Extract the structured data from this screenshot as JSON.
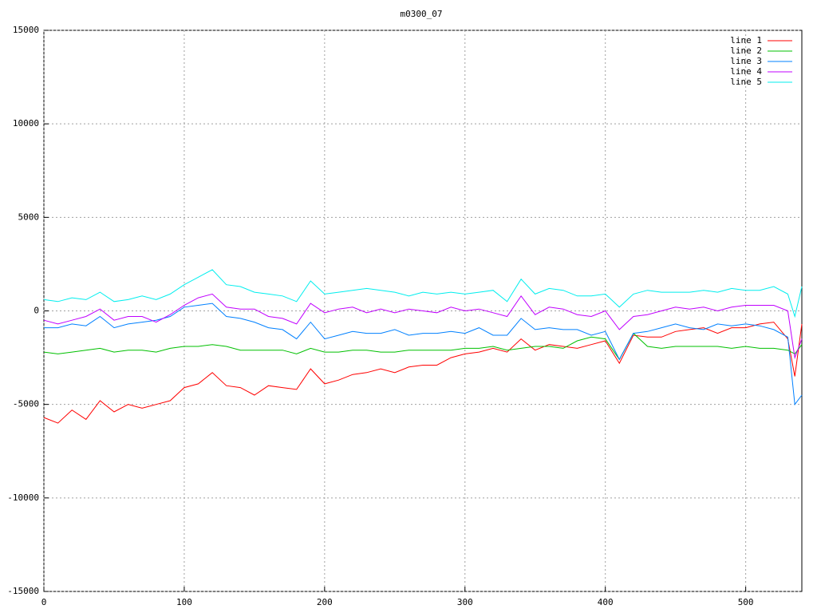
{
  "chart_data": {
    "type": "line",
    "title": "m0300_07",
    "x": [
      0,
      10,
      20,
      30,
      40,
      50,
      60,
      70,
      80,
      90,
      100,
      110,
      120,
      130,
      140,
      150,
      160,
      170,
      180,
      190,
      200,
      210,
      220,
      230,
      240,
      250,
      260,
      270,
      280,
      290,
      300,
      310,
      320,
      330,
      340,
      350,
      360,
      370,
      380,
      390,
      400,
      410,
      420,
      430,
      440,
      450,
      460,
      470,
      480,
      490,
      500,
      510,
      520,
      530,
      535,
      540
    ],
    "series": [
      {
        "name": "line 1",
        "color": "#ff0000",
        "values": [
          -5700,
          -6000,
          -5300,
          -5800,
          -4800,
          -5400,
          -5000,
          -5200,
          -5000,
          -4800,
          -4100,
          -3900,
          -3300,
          -4000,
          -4100,
          -4500,
          -4000,
          -4100,
          -4200,
          -3100,
          -3900,
          -3700,
          -3400,
          -3300,
          -3100,
          -3300,
          -3000,
          -2900,
          -2900,
          -2500,
          -2300,
          -2200,
          -2000,
          -2200,
          -1500,
          -2100,
          -1800,
          -1900,
          -2000,
          -1800,
          -1600,
          -2800,
          -1300,
          -1400,
          -1400,
          -1100,
          -1000,
          -900,
          -1200,
          -900,
          -900,
          -700,
          -600,
          -1500,
          -3500,
          -700
        ]
      },
      {
        "name": "line 2",
        "color": "#00c000",
        "values": [
          -2200,
          -2300,
          -2200,
          -2100,
          -2000,
          -2200,
          -2100,
          -2100,
          -2200,
          -2000,
          -1900,
          -1900,
          -1800,
          -1900,
          -2100,
          -2100,
          -2100,
          -2100,
          -2300,
          -2000,
          -2200,
          -2200,
          -2100,
          -2100,
          -2200,
          -2200,
          -2100,
          -2100,
          -2100,
          -2100,
          -2000,
          -2000,
          -1900,
          -2100,
          -2000,
          -1900,
          -1900,
          -2000,
          -1600,
          -1400,
          -1500,
          -2600,
          -1200,
          -1900,
          -2000,
          -1900,
          -1900,
          -1900,
          -1900,
          -2000,
          -1900,
          -2000,
          -2000,
          -2100,
          -2300,
          -1800
        ]
      },
      {
        "name": "line 3",
        "color": "#0080ff",
        "values": [
          -900,
          -900,
          -700,
          -800,
          -300,
          -900,
          -700,
          -600,
          -500,
          -300,
          200,
          300,
          400,
          -300,
          -400,
          -600,
          -900,
          -1000,
          -1500,
          -600,
          -1500,
          -1300,
          -1100,
          -1200,
          -1200,
          -1000,
          -1300,
          -1200,
          -1200,
          -1100,
          -1200,
          -900,
          -1300,
          -1300,
          -400,
          -1000,
          -900,
          -1000,
          -1000,
          -1300,
          -1100,
          -2600,
          -1200,
          -1100,
          -900,
          -700,
          -900,
          -1000,
          -700,
          -800,
          -700,
          -800,
          -1000,
          -1400,
          -5000,
          -4500
        ]
      },
      {
        "name": "line 4",
        "color": "#c000ff",
        "values": [
          -500,
          -700,
          -500,
          -300,
          100,
          -500,
          -300,
          -300,
          -600,
          -200,
          300,
          700,
          900,
          200,
          100,
          100,
          -300,
          -400,
          -700,
          400,
          -100,
          100,
          200,
          -100,
          100,
          -100,
          100,
          0,
          -100,
          200,
          0,
          100,
          -100,
          -300,
          800,
          -200,
          200,
          100,
          -200,
          -300,
          0,
          -1000,
          -300,
          -200,
          0,
          200,
          100,
          200,
          0,
          200,
          300,
          300,
          300,
          0,
          -2500,
          -1500
        ]
      },
      {
        "name": "line 5",
        "color": "#00eeee",
        "values": [
          600,
          500,
          700,
          600,
          1000,
          500,
          600,
          800,
          600,
          900,
          1400,
          1800,
          2200,
          1400,
          1300,
          1000,
          900,
          800,
          500,
          1600,
          900,
          1000,
          1100,
          1200,
          1100,
          1000,
          800,
          1000,
          900,
          1000,
          900,
          1000,
          1100,
          500,
          1700,
          900,
          1200,
          1100,
          800,
          800,
          900,
          200,
          900,
          1100,
          1000,
          1000,
          1000,
          1100,
          1000,
          1200,
          1100,
          1100,
          1300,
          900,
          -300,
          1300
        ]
      }
    ],
    "xlim": [
      0,
      540
    ],
    "ylim": [
      -15000,
      15000
    ],
    "xticks": [
      0,
      100,
      200,
      300,
      400,
      500
    ],
    "yticks": [
      -15000,
      -10000,
      -5000,
      0,
      5000,
      10000,
      15000
    ],
    "grid": true,
    "legend": "top-right"
  }
}
